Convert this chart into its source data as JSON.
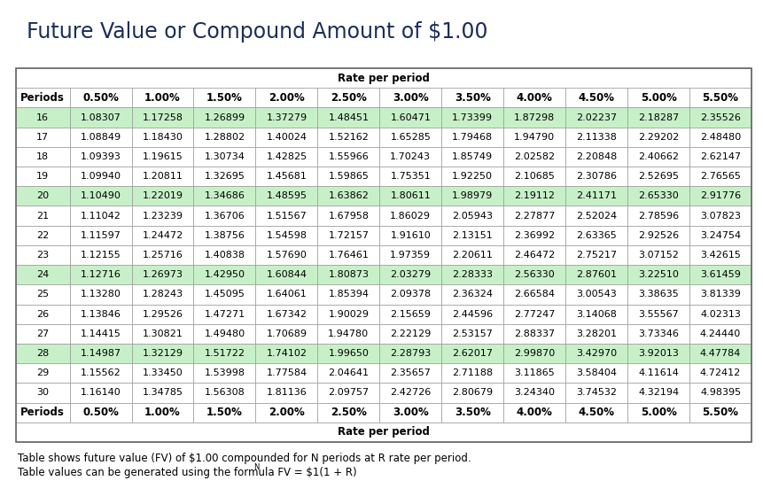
{
  "title": "Future Value or Compound Amount of $1.00",
  "col_headers": [
    "Periods",
    "0.50%",
    "1.00%",
    "1.50%",
    "2.00%",
    "2.50%",
    "3.00%",
    "3.50%",
    "4.00%",
    "4.50%",
    "5.00%",
    "5.50%"
  ],
  "rate_label": "Rate per period",
  "rows": [
    [
      16,
      1.08307,
      1.17258,
      1.26899,
      1.37279,
      1.48451,
      1.60471,
      1.73399,
      1.87298,
      2.02237,
      2.18287,
      2.35526
    ],
    [
      17,
      1.08849,
      1.1843,
      1.28802,
      1.40024,
      1.52162,
      1.65285,
      1.79468,
      1.9479,
      2.11338,
      2.29202,
      2.4848
    ],
    [
      18,
      1.09393,
      1.19615,
      1.30734,
      1.42825,
      1.55966,
      1.70243,
      1.85749,
      2.02582,
      2.20848,
      2.40662,
      2.62147
    ],
    [
      19,
      1.0994,
      1.20811,
      1.32695,
      1.45681,
      1.59865,
      1.75351,
      1.9225,
      2.10685,
      2.30786,
      2.52695,
      2.76565
    ],
    [
      20,
      1.1049,
      1.22019,
      1.34686,
      1.48595,
      1.63862,
      1.80611,
      1.98979,
      2.19112,
      2.41171,
      2.6533,
      2.91776
    ],
    [
      21,
      1.11042,
      1.23239,
      1.36706,
      1.51567,
      1.67958,
      1.86029,
      2.05943,
      2.27877,
      2.52024,
      2.78596,
      3.07823
    ],
    [
      22,
      1.11597,
      1.24472,
      1.38756,
      1.54598,
      1.72157,
      1.9161,
      2.13151,
      2.36992,
      2.63365,
      2.92526,
      3.24754
    ],
    [
      23,
      1.12155,
      1.25716,
      1.40838,
      1.5769,
      1.76461,
      1.97359,
      2.20611,
      2.46472,
      2.75217,
      3.07152,
      3.42615
    ],
    [
      24,
      1.12716,
      1.26973,
      1.4295,
      1.60844,
      1.80873,
      2.03279,
      2.28333,
      2.5633,
      2.87601,
      3.2251,
      3.61459
    ],
    [
      25,
      1.1328,
      1.28243,
      1.45095,
      1.64061,
      1.85394,
      2.09378,
      2.36324,
      2.66584,
      3.00543,
      3.38635,
      3.81339
    ],
    [
      26,
      1.13846,
      1.29526,
      1.47271,
      1.67342,
      1.90029,
      2.15659,
      2.44596,
      2.77247,
      3.14068,
      3.55567,
      4.02313
    ],
    [
      27,
      1.14415,
      1.30821,
      1.4948,
      1.70689,
      1.9478,
      2.22129,
      2.53157,
      2.88337,
      3.28201,
      3.73346,
      4.2444
    ],
    [
      28,
      1.14987,
      1.32129,
      1.51722,
      1.74102,
      1.9965,
      2.28793,
      2.62017,
      2.9987,
      3.4297,
      3.92013,
      4.47784
    ],
    [
      29,
      1.15562,
      1.3345,
      1.53998,
      1.77584,
      2.04641,
      2.35657,
      2.71188,
      3.11865,
      3.58404,
      4.11614,
      4.72412
    ],
    [
      30,
      1.1614,
      1.34785,
      1.56308,
      1.81136,
      2.09757,
      2.42726,
      2.80679,
      3.2434,
      3.74532,
      4.32194,
      4.98395
    ]
  ],
  "highlighted_rows": [
    0,
    4,
    8,
    12
  ],
  "highlight_color": "#c8f0c8",
  "white_color": "#ffffff",
  "border_color": "#999999",
  "title_color": "#1a2e5a",
  "footnote1": "Table shows future value (FV) of $1.00 compounded for N periods at R rate per period.",
  "footnote2": "Table values can be generated using the formula FV = $1(1 + R)",
  "footnote2_sup": "N",
  "footnote2_end": ".",
  "title_fontsize": 17,
  "header_fontsize": 8.5,
  "cell_fontsize": 8,
  "footnote_fontsize": 8.5
}
